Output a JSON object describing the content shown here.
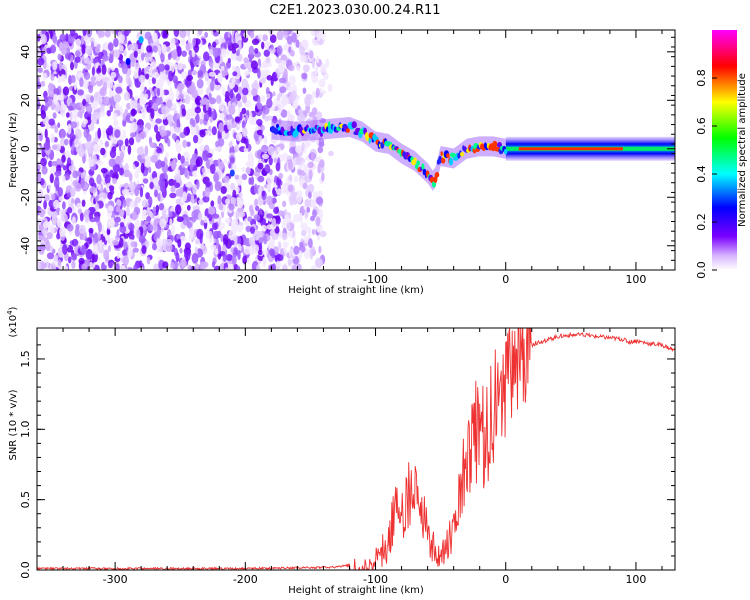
{
  "title": "C2E1.2023.030.00.24.R11",
  "chart_data": [
    {
      "type": "heatmap",
      "xlabel": "Height of straight line (km)",
      "ylabel": "Frequency (Hz)",
      "xlim": [
        -360,
        130
      ],
      "ylim": [
        -50,
        49
      ],
      "x_ticks": [
        -300,
        -200,
        -100,
        0,
        100
      ],
      "y_ticks": [
        -40,
        -20,
        0,
        20,
        40
      ],
      "grid": false,
      "colormap": [
        "#ffffff",
        "#7a00ff",
        "#0000ff",
        "#00ffff",
        "#00ff00",
        "#ffff00",
        "#ff0000",
        "#ff00ff"
      ],
      "colorbar": {
        "label": "Normalized spectral amplitude",
        "range": [
          0.0,
          1.0
        ],
        "ticks": [
          "0.0",
          "0.2",
          "0.4",
          "0.6",
          "0.8"
        ]
      },
      "signal_track": {
        "x": [
          -180,
          -160,
          -140,
          -120,
          -110,
          -100,
          -90,
          -80,
          -70,
          -60,
          -55,
          -50,
          -40,
          -30,
          -20,
          -10,
          0,
          20,
          60,
          100,
          130
        ],
        "y": [
          8,
          7,
          8,
          9,
          7,
          3,
          2,
          -2,
          -5,
          -10,
          -14,
          -3,
          -4,
          0,
          1,
          1,
          0,
          0,
          0,
          0,
          0
        ]
      },
      "noise_region_x": [
        -360,
        -140
      ]
    },
    {
      "type": "line",
      "xlabel": "Height of straight line (km)",
      "ylabel": "SNR (10 * v/v)",
      "y_multiplier": "(x10",
      "y_multiplier_exp": "4",
      "y_multiplier_close": ")",
      "xlim": [
        -360,
        130
      ],
      "ylim": [
        0,
        1.72
      ],
      "x_ticks": [
        -300,
        -200,
        -100,
        0,
        100
      ],
      "y_ticks": [
        "0.0",
        "0.5",
        "1.0",
        "1.5"
      ],
      "series": [
        {
          "color": "#ee3030",
          "x": [
            -360,
            -200,
            -130,
            -110,
            -100,
            -95,
            -90,
            -85,
            -80,
            -76,
            -72,
            -68,
            -64,
            -60,
            -55,
            -50,
            -45,
            -40,
            -36,
            -32,
            -28,
            -24,
            -20,
            -16,
            -12,
            -8,
            -4,
            0,
            5,
            10,
            15,
            20,
            25,
            30,
            40,
            50,
            60,
            70,
            80,
            90,
            95,
            100,
            110,
            120,
            130
          ],
          "y": [
            0.01,
            0.01,
            0.02,
            0.05,
            0.1,
            0.18,
            0.3,
            0.45,
            0.5,
            0.55,
            0.6,
            0.52,
            0.45,
            0.35,
            0.2,
            0.12,
            0.2,
            0.3,
            0.55,
            0.75,
            0.95,
            1.05,
            1.0,
            1.0,
            1.1,
            1.2,
            1.25,
            1.35,
            1.45,
            1.55,
            1.58,
            1.6,
            1.62,
            1.63,
            1.66,
            1.67,
            1.67,
            1.66,
            1.65,
            1.64,
            1.62,
            1.63,
            1.61,
            1.6,
            1.56
          ]
        }
      ]
    }
  ]
}
